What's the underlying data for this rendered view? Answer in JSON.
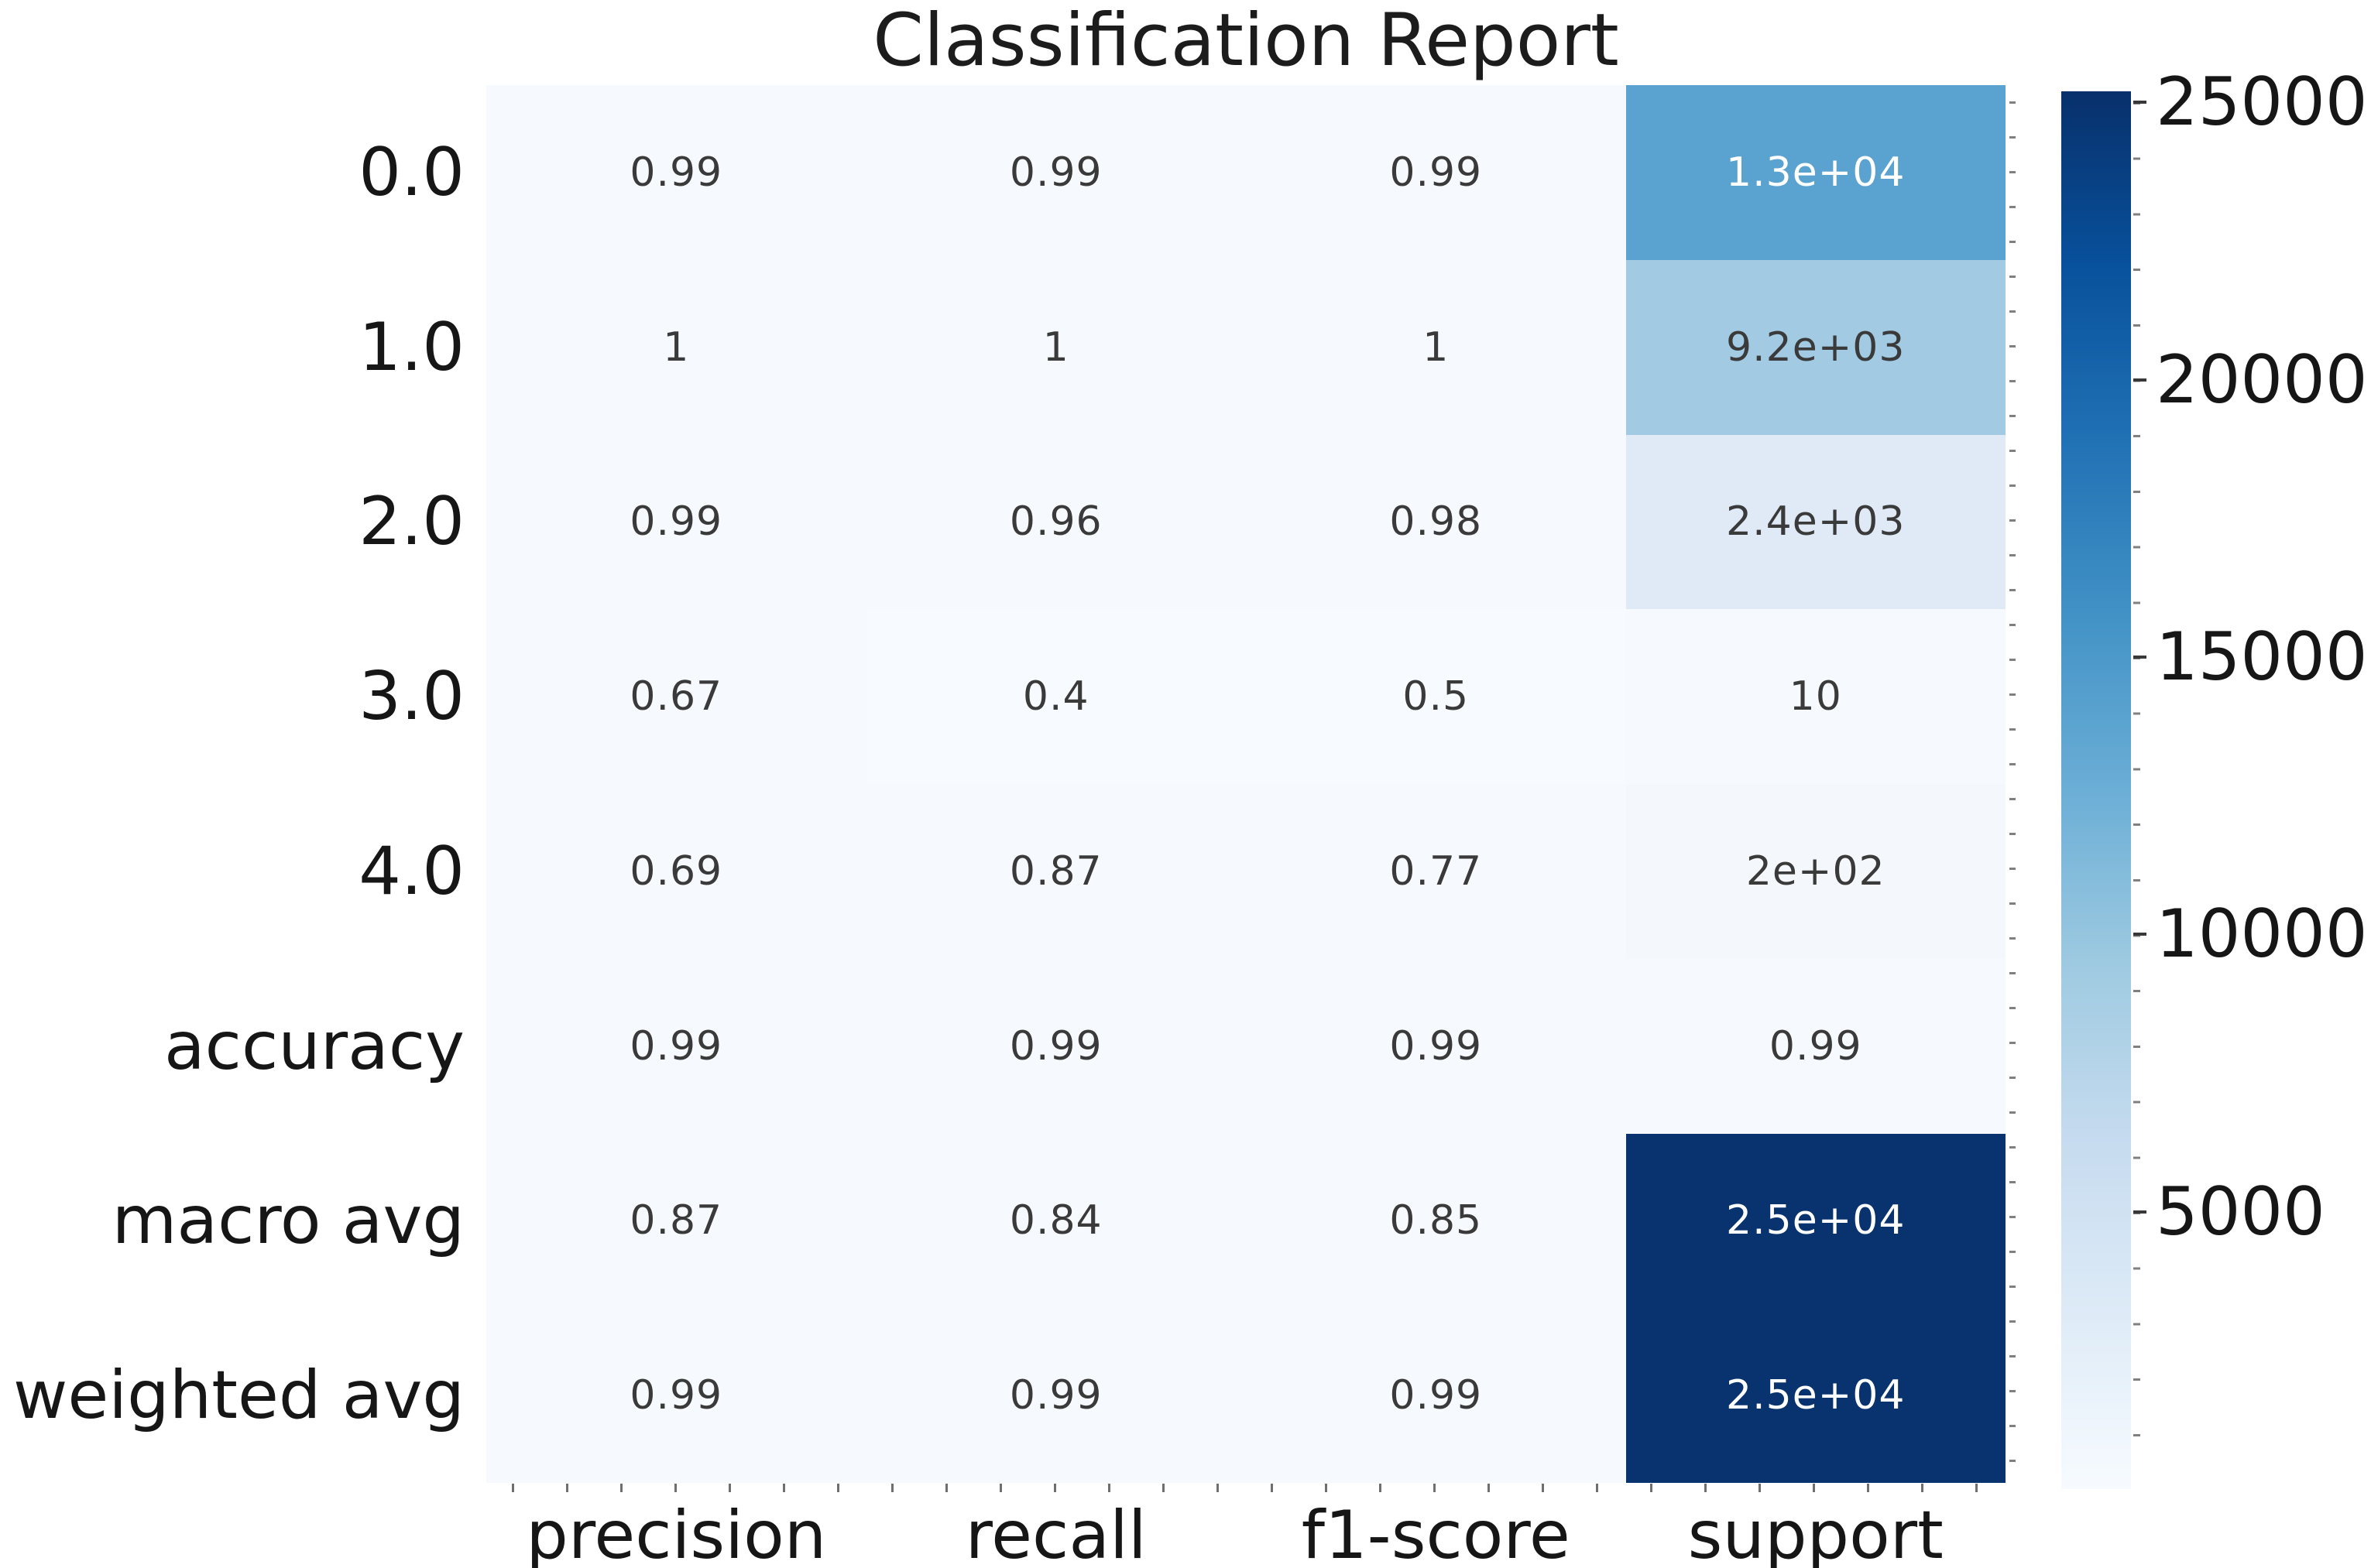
{
  "title": "Classification Report",
  "chart_data": {
    "type": "heatmap",
    "title": "Classification Report",
    "rows": [
      "0.0",
      "1.0",
      "2.0",
      "3.0",
      "4.0",
      "accuracy",
      "macro avg",
      "weighted avg"
    ],
    "columns": [
      "precision",
      "recall",
      "f1-score",
      "support"
    ],
    "cell_labels": [
      [
        "0.99",
        "0.99",
        "0.99",
        "1.3e+04"
      ],
      [
        "1",
        "1",
        "1",
        "9.2e+03"
      ],
      [
        "0.99",
        "0.96",
        "0.98",
        "2.4e+03"
      ],
      [
        "0.67",
        "0.4",
        "0.5",
        "10"
      ],
      [
        "0.69",
        "0.87",
        "0.77",
        "2e+02"
      ],
      [
        "0.99",
        "0.99",
        "0.99",
        "0.99"
      ],
      [
        "0.87",
        "0.84",
        "0.85",
        "2.5e+04"
      ],
      [
        "0.99",
        "0.99",
        "0.99",
        "2.5e+04"
      ]
    ],
    "values": [
      [
        0.99,
        0.99,
        0.99,
        13000
      ],
      [
        1,
        1,
        1,
        9200
      ],
      [
        0.99,
        0.96,
        0.98,
        2400
      ],
      [
        0.67,
        0.4,
        0.5,
        10
      ],
      [
        0.69,
        0.87,
        0.77,
        200
      ],
      [
        0.99,
        0.99,
        0.99,
        0.99
      ],
      [
        0.87,
        0.84,
        0.85,
        25000
      ],
      [
        0.99,
        0.99,
        0.99,
        25000
      ]
    ],
    "colormap": "Blues",
    "legend_position": "right",
    "grid": false,
    "colorbar": {
      "major_ticks": [
        25000,
        20000,
        15000,
        10000,
        5000
      ],
      "major_tick_labels": [
        "25000",
        "20000",
        "15000",
        "10000",
        "5000"
      ],
      "minor_tick_step": 1000,
      "value_range_top_label": "25000"
    }
  },
  "style": {
    "figure_bg": "#ffffff",
    "title_color": "#1c1c1c",
    "tick_label_color": "#161616",
    "annotation_dark_color": "#3a3a3a",
    "annotation_light_color": "#ffffff",
    "colormap_stops": [
      "#f7fbff",
      "#deebf7",
      "#c6dbef",
      "#9ecae1",
      "#6baed6",
      "#4292c6",
      "#2171b5",
      "#08519c",
      "#08306b"
    ],
    "cell_bg": [
      [
        "#f6f9fd",
        "#f6f9fd",
        "#f6f9fd",
        "#5aa2cf"
      ],
      [
        "#f6f9fd",
        "#f6f9fd",
        "#f6f9fd",
        "#a2cbe3"
      ],
      [
        "#f6f9fd",
        "#f6f9fd",
        "#f6f9fd",
        "#dfeaf6"
      ],
      [
        "#f6f9fd",
        "#f7fbff",
        "#f7fbff",
        "#f6f9fd"
      ],
      [
        "#f6f9fd",
        "#f6f9fd",
        "#f6f9fd",
        "#f4f8fc"
      ],
      [
        "#f6f9fd",
        "#f6f9fd",
        "#f6f9fd",
        "#f6f9fd"
      ],
      [
        "#f6f9fd",
        "#f6f9fd",
        "#f6f9fd",
        "#09336e"
      ],
      [
        "#f6f9fd",
        "#f6f9fd",
        "#f6f9fd",
        "#09336e"
      ]
    ],
    "cell_fg": [
      [
        "#3a3a3a",
        "#3a3a3a",
        "#3a3a3a",
        "#ffffff"
      ],
      [
        "#3a3a3a",
        "#3a3a3a",
        "#3a3a3a",
        "#3a3a3a"
      ],
      [
        "#3a3a3a",
        "#3a3a3a",
        "#3a3a3a",
        "#3a3a3a"
      ],
      [
        "#3a3a3a",
        "#3a3a3a",
        "#3a3a3a",
        "#3a3a3a"
      ],
      [
        "#3a3a3a",
        "#3a3a3a",
        "#3a3a3a",
        "#3a3a3a"
      ],
      [
        "#3a3a3a",
        "#3a3a3a",
        "#3a3a3a",
        "#3a3a3a"
      ],
      [
        "#3a3a3a",
        "#3a3a3a",
        "#3a3a3a",
        "#ffffff"
      ],
      [
        "#3a3a3a",
        "#3a3a3a",
        "#3a3a3a",
        "#ffffff"
      ]
    ]
  }
}
